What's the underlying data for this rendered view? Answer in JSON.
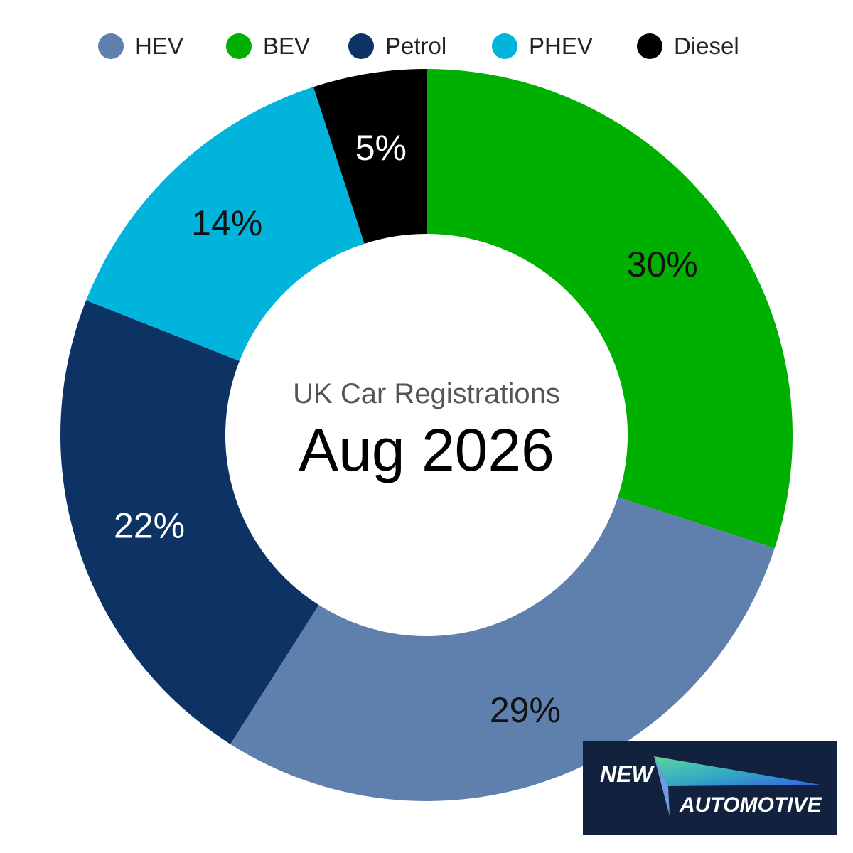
{
  "chart_data": {
    "type": "pie",
    "donut": true,
    "categories": [
      "BEV",
      "HEV",
      "Petrol",
      "PHEV",
      "Diesel"
    ],
    "values": [
      30,
      29,
      22,
      14,
      5
    ],
    "data_labels": [
      "30%",
      "29%",
      "22%",
      "14%",
      "5%"
    ],
    "colors": [
      "#00b000",
      "#5f80ad",
      "#0d3364",
      "#00b4db",
      "#000000"
    ],
    "label_colors": [
      "#111111",
      "#111111",
      "#ffffff",
      "#111111",
      "#ffffff"
    ],
    "center_subtitle": "UK Car Registrations",
    "center_title": "Aug 2026",
    "legend": {
      "placement": "top",
      "entries": [
        {
          "label": "HEV",
          "color": "#5f80ad"
        },
        {
          "label": "BEV",
          "color": "#00b000"
        },
        {
          "label": "Petrol",
          "color": "#0d3364"
        },
        {
          "label": "PHEV",
          "color": "#00b4db"
        },
        {
          "label": "Diesel",
          "color": "#000000"
        }
      ]
    }
  },
  "logo": {
    "line1": "NEW",
    "line2": "AUTOMOTIVE"
  }
}
